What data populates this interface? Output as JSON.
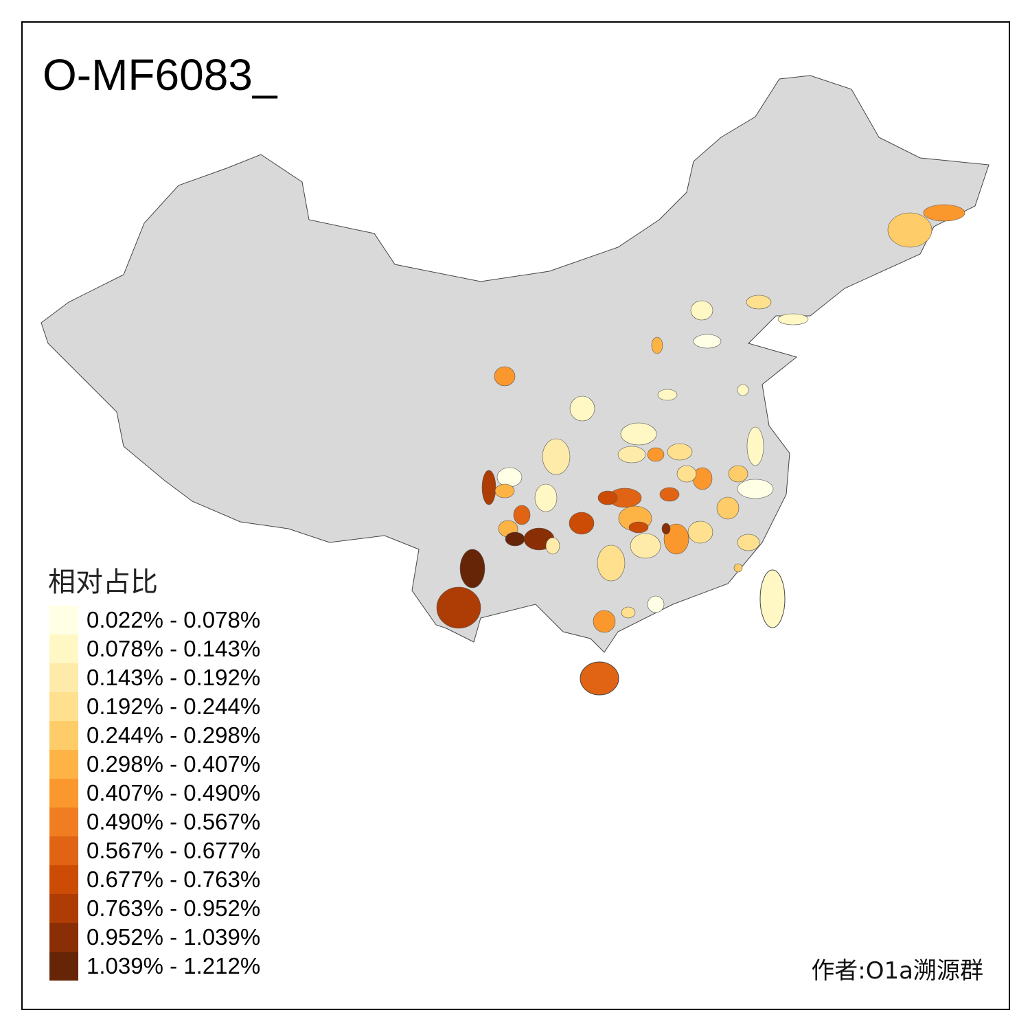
{
  "title": "O-MF6083_",
  "legend": {
    "title": "相对占比",
    "items": [
      {
        "label": "0.022% - 0.078%",
        "color": "#FFFFE5"
      },
      {
        "label": "0.078% - 0.143%",
        "color": "#FFF7C4"
      },
      {
        "label": "0.143% - 0.192%",
        "color": "#FEEBAA"
      },
      {
        "label": "0.192% - 0.244%",
        "color": "#FEE08E"
      },
      {
        "label": "0.244% - 0.298%",
        "color": "#FECC68"
      },
      {
        "label": "0.298% - 0.407%",
        "color": "#FDB445"
      },
      {
        "label": "0.407% - 0.490%",
        "color": "#FB982D"
      },
      {
        "label": "0.490% - 0.567%",
        "color": "#F07E21"
      },
      {
        "label": "0.567% - 0.677%",
        "color": "#E06414"
      },
      {
        "label": "0.677% - 0.763%",
        "color": "#CC4C06"
      },
      {
        "label": "0.763% - 0.952%",
        "color": "#AD3D05"
      },
      {
        "label": "0.952% - 1.039%",
        "color": "#8A2F05"
      },
      {
        "label": "1.039% - 1.212%",
        "color": "#662506"
      }
    ]
  },
  "base_color": "#D9D9D9",
  "author": "作者:O1a溯源群"
}
